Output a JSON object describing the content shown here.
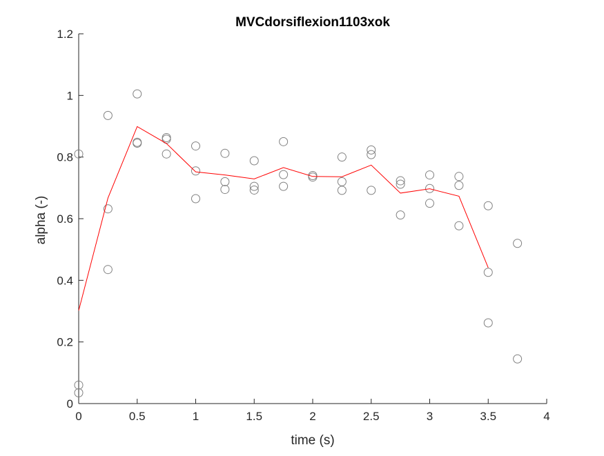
{
  "chart_data": {
    "type": "scatter",
    "title": "MVCdorsiflexion1103xok",
    "xlabel": "time (s)",
    "ylabel": "alpha (-)",
    "xlim": [
      0,
      4
    ],
    "ylim": [
      0,
      1.2
    ],
    "xticks": [
      0,
      0.5,
      1,
      1.5,
      2,
      2.5,
      3,
      3.5,
      4
    ],
    "xtick_labels": [
      "0",
      "0.5",
      "1",
      "1.5",
      "2",
      "2.5",
      "3",
      "3.5",
      "4"
    ],
    "yticks": [
      0,
      0.2,
      0.4,
      0.6,
      0.8,
      1.0,
      1.2
    ],
    "ytick_labels": [
      "0",
      "0.2",
      "0.4",
      "0.6",
      "0.8",
      "1",
      "1.2"
    ],
    "grid": false,
    "legend": "none",
    "colors": {
      "points": "#808080",
      "line": "#ff0000",
      "axes": "#262626"
    },
    "series": [
      {
        "type": "scatter",
        "marker": "open-circle",
        "x": [
          0,
          0,
          0,
          0.25,
          0.25,
          0.25,
          0.5,
          0.5,
          0.5,
          0.75,
          0.75,
          0.75,
          1.0,
          1.0,
          1.0,
          1.25,
          1.25,
          1.25,
          1.5,
          1.5,
          1.5,
          1.75,
          1.75,
          1.75,
          2.0,
          2.0,
          2.25,
          2.25,
          2.25,
          2.5,
          2.5,
          2.5,
          2.75,
          2.75,
          2.75,
          3.0,
          3.0,
          3.0,
          3.25,
          3.25,
          3.25,
          3.5,
          3.5,
          3.5,
          3.75,
          3.75
        ],
        "y": [
          0.81,
          0.06,
          0.035,
          0.935,
          0.632,
          0.435,
          1.005,
          0.848,
          0.845,
          0.863,
          0.858,
          0.81,
          0.836,
          0.755,
          0.665,
          0.812,
          0.72,
          0.695,
          0.788,
          0.705,
          0.693,
          0.85,
          0.743,
          0.705,
          0.74,
          0.735,
          0.8,
          0.72,
          0.692,
          0.823,
          0.808,
          0.692,
          0.723,
          0.712,
          0.612,
          0.742,
          0.698,
          0.65,
          0.737,
          0.708,
          0.577,
          0.642,
          0.426,
          0.262,
          0.52,
          0.145
        ]
      },
      {
        "type": "line",
        "x": [
          0,
          0.25,
          0.5,
          0.75,
          1.0,
          1.25,
          1.5,
          1.75,
          2.0,
          2.25,
          2.5,
          2.75,
          3.0,
          3.25,
          3.5
        ],
        "y": [
          0.302,
          0.667,
          0.899,
          0.844,
          0.752,
          0.742,
          0.729,
          0.766,
          0.737,
          0.736,
          0.774,
          0.683,
          0.697,
          0.673,
          0.441
        ]
      }
    ]
  }
}
